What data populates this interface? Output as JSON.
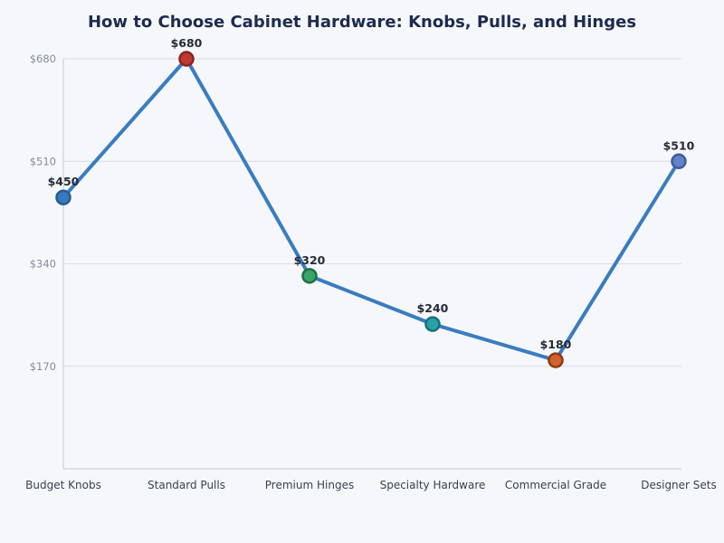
{
  "chart_data": {
    "type": "line",
    "title": "How to Choose Cabinet Hardware: Knobs, Pulls, and Hinges",
    "categories": [
      "Budget Knobs",
      "Standard Pulls",
      "Premium Hinges",
      "Specialty Hardware",
      "Commercial Grade",
      "Designer Sets"
    ],
    "values": [
      450,
      680,
      320,
      240,
      180,
      510
    ],
    "point_labels": [
      "$450",
      "$680",
      "$320",
      "$240",
      "$180",
      "$510"
    ],
    "xlabel": "",
    "ylabel": "",
    "ylim": [
      0,
      680
    ],
    "y_ticks": [
      170,
      340,
      510,
      680
    ],
    "y_tick_labels": [
      "$170",
      "$340",
      "$510",
      "$680"
    ],
    "grid": true,
    "legend": false,
    "line_color": "#3a7cc0",
    "line_width": 4,
    "markers": [
      {
        "fill": "#3779bd",
        "edge": "#235d94"
      },
      {
        "fill": "#c23932",
        "edge": "#8c2420"
      },
      {
        "fill": "#3aa568",
        "edge": "#1e6f44"
      },
      {
        "fill": "#29a1a8",
        "edge": "#127379"
      },
      {
        "fill": "#d2622d",
        "edge": "#8e3a12"
      },
      {
        "fill": "#6383c6",
        "edge": "#3c5a9e"
      }
    ],
    "style": {
      "background": "#f5f7fa",
      "grid_color": "#d9dde5",
      "spine_color": "#c3c9d3",
      "title_color": "#1d2b4e",
      "y_tick_label_color": "#868c99",
      "category_label_color": "#3a4152",
      "point_label_color": "#262b36"
    }
  }
}
